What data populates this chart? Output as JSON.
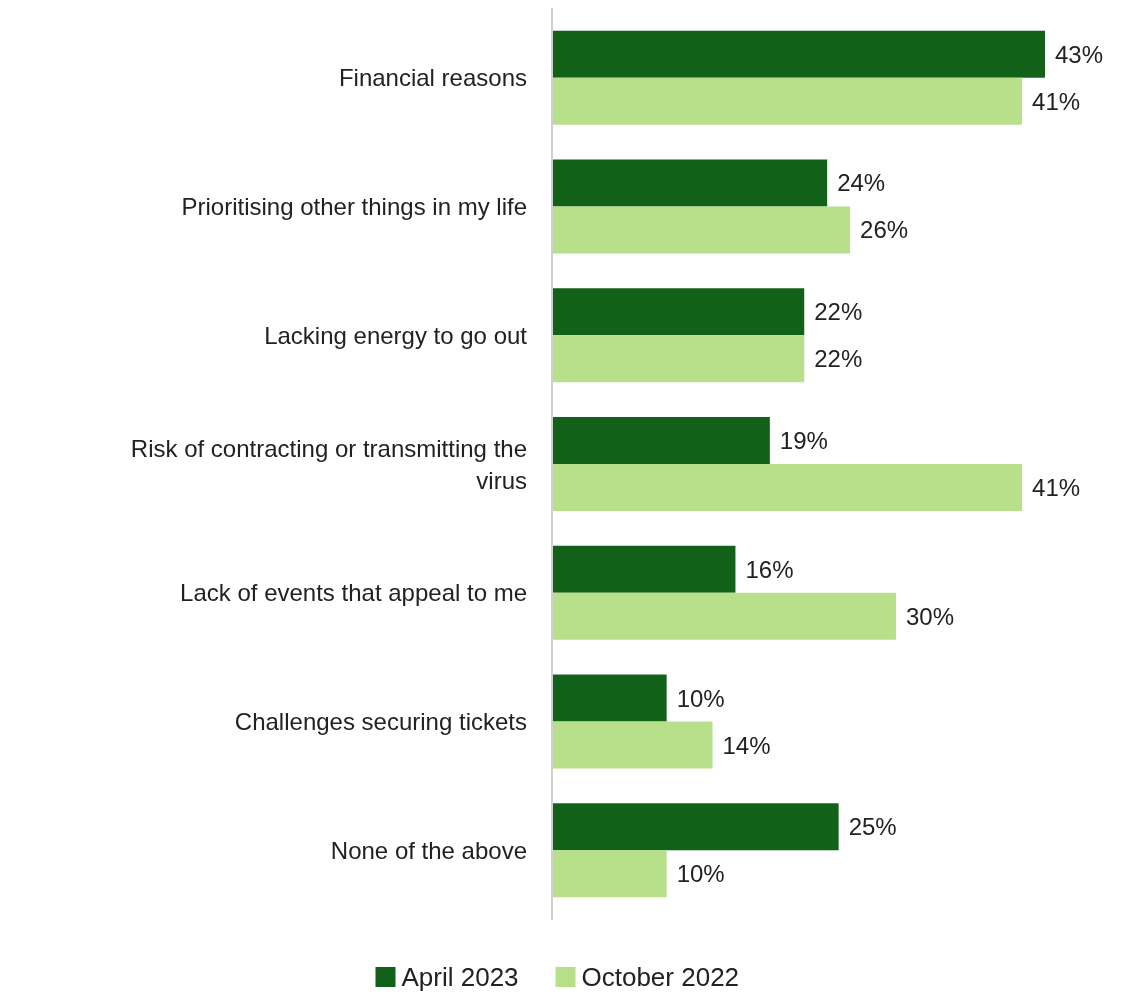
{
  "chart_data": {
    "type": "bar",
    "orientation": "horizontal",
    "categories": [
      "Financial reasons",
      "Prioritising other things in my life",
      "Lacking energy to go out",
      "Risk of contracting or transmitting the virus",
      "Lack of events that appeal to me",
      "Challenges securing tickets",
      "None of the above"
    ],
    "series": [
      {
        "name": "April 2023",
        "color": "#126119",
        "values": [
          43,
          24,
          22,
          19,
          16,
          10,
          25
        ],
        "value_labels": [
          "43%",
          "24%",
          "22%",
          "19%",
          "16%",
          "10%",
          "25%"
        ]
      },
      {
        "name": "October 2022",
        "color": "#b8e08a",
        "values": [
          41,
          26,
          22,
          41,
          30,
          14,
          10
        ],
        "value_labels": [
          "41%",
          "26%",
          "22%",
          "41%",
          "30%",
          "14%",
          "10%"
        ]
      }
    ],
    "legend": "bottom"
  }
}
